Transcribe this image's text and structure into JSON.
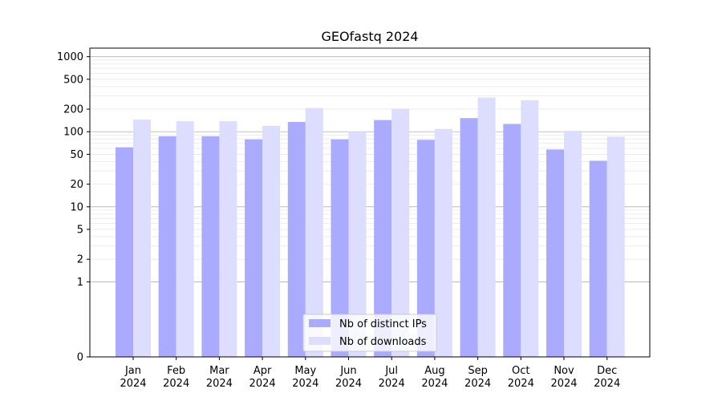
{
  "chart_data": {
    "type": "bar",
    "title": "GEOfastq 2024",
    "xlabel": "",
    "ylabel": "",
    "yscale": "symlog",
    "ylim": [
      0,
      1300
    ],
    "yticks": [
      0,
      1,
      2,
      5,
      10,
      20,
      50,
      100,
      200,
      500,
      1000
    ],
    "grid": true,
    "legend_position": "bottom-center",
    "categories": [
      {
        "month": "Jan",
        "year": "2024"
      },
      {
        "month": "Feb",
        "year": "2024"
      },
      {
        "month": "Mar",
        "year": "2024"
      },
      {
        "month": "Apr",
        "year": "2024"
      },
      {
        "month": "May",
        "year": "2024"
      },
      {
        "month": "Jun",
        "year": "2024"
      },
      {
        "month": "Jul",
        "year": "2024"
      },
      {
        "month": "Aug",
        "year": "2024"
      },
      {
        "month": "Sep",
        "year": "2024"
      },
      {
        "month": "Oct",
        "year": "2024"
      },
      {
        "month": "Nov",
        "year": "2024"
      },
      {
        "month": "Dec",
        "year": "2024"
      }
    ],
    "series": [
      {
        "name": "Nb of distinct IPs",
        "color": "#aaaaff",
        "values": [
          62,
          87,
          87,
          79,
          135,
          79,
          143,
          78,
          152,
          127,
          58,
          41
        ]
      },
      {
        "name": "Nb of downloads",
        "color": "#ddddff",
        "values": [
          145,
          138,
          138,
          120,
          207,
          100,
          203,
          109,
          285,
          262,
          103,
          86
        ]
      }
    ]
  }
}
